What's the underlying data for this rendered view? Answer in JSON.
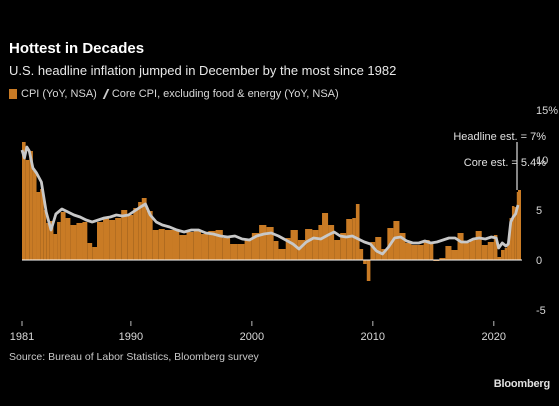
{
  "header": {
    "title": "Hottest in Decades",
    "subtitle": "U.S. headline inflation jumped in December by the most since 1982"
  },
  "legend": {
    "cpi_label": "CPI (YoY, NSA)",
    "core_label": "Core CPI, excluding food & energy (YoY, NSA)"
  },
  "annotations": {
    "headline_est": "Headline est. = 7%",
    "core_est": "Core est. = 5.4%"
  },
  "footer": {
    "source": "Source: Bureau of Labor Statistics, Bloomberg survey",
    "brand": "Bloomberg"
  },
  "colors": {
    "background": "#000000",
    "cpi_bar": "#c97b25",
    "core_line": "#c8c8c8",
    "axis": "#ffffff"
  },
  "chart_data": {
    "type": "bar",
    "x_unit": "year",
    "ylim": [
      -5,
      15
    ],
    "y_ticks": [
      -5,
      0,
      5,
      10,
      15
    ],
    "y_tick_labels": [
      "-5",
      "0",
      "5",
      "10",
      "15%"
    ],
    "x_ticks": [
      1981,
      1990,
      2000,
      2010,
      2020
    ],
    "x_tick_labels": [
      "1981",
      "1990",
      "2000",
      "2010",
      "2020"
    ],
    "xlim": [
      1981,
      2022
    ],
    "series": [
      {
        "name": "CPI (YoY, NSA)",
        "type": "bar",
        "points": [
          [
            1981.0,
            11.8
          ],
          [
            1981.3,
            10.0
          ],
          [
            1981.6,
            10.9
          ],
          [
            1981.9,
            8.9
          ],
          [
            1982.2,
            6.8
          ],
          [
            1982.5,
            7.1
          ],
          [
            1982.8,
            5.0
          ],
          [
            1983.0,
            3.7
          ],
          [
            1983.3,
            3.9
          ],
          [
            1983.6,
            2.6
          ],
          [
            1983.9,
            3.8
          ],
          [
            1984.2,
            4.8
          ],
          [
            1984.6,
            4.2
          ],
          [
            1985.0,
            3.5
          ],
          [
            1985.5,
            3.7
          ],
          [
            1986.0,
            3.8
          ],
          [
            1986.4,
            1.7
          ],
          [
            1986.8,
            1.3
          ],
          [
            1987.2,
            3.8
          ],
          [
            1987.7,
            4.2
          ],
          [
            1988.2,
            4.0
          ],
          [
            1988.7,
            4.2
          ],
          [
            1989.2,
            5.0
          ],
          [
            1989.7,
            4.5
          ],
          [
            1990.2,
            5.2
          ],
          [
            1990.6,
            5.8
          ],
          [
            1990.9,
            6.2
          ],
          [
            1991.3,
            4.9
          ],
          [
            1991.8,
            3.0
          ],
          [
            1992.3,
            3.1
          ],
          [
            1992.8,
            3.0
          ],
          [
            1993.4,
            3.0
          ],
          [
            1994.0,
            2.5
          ],
          [
            1994.6,
            2.8
          ],
          [
            1995.2,
            2.9
          ],
          [
            1995.8,
            2.6
          ],
          [
            1996.4,
            2.9
          ],
          [
            1997.0,
            3.0
          ],
          [
            1997.6,
            2.2
          ],
          [
            1998.2,
            1.6
          ],
          [
            1998.8,
            1.6
          ],
          [
            1999.4,
            2.1
          ],
          [
            2000.0,
            2.7
          ],
          [
            2000.6,
            3.5
          ],
          [
            2001.2,
            3.3
          ],
          [
            2001.8,
            1.9
          ],
          [
            2002.2,
            1.1
          ],
          [
            2002.8,
            2.2
          ],
          [
            2003.2,
            3.0
          ],
          [
            2003.8,
            2.0
          ],
          [
            2004.4,
            3.1
          ],
          [
            2005.0,
            3.0
          ],
          [
            2005.5,
            3.5
          ],
          [
            2005.8,
            4.7
          ],
          [
            2006.3,
            3.5
          ],
          [
            2006.8,
            2.0
          ],
          [
            2007.3,
            2.7
          ],
          [
            2007.8,
            4.1
          ],
          [
            2008.3,
            4.2
          ],
          [
            2008.6,
            5.6
          ],
          [
            2008.9,
            1.1
          ],
          [
            2009.2,
            -0.4
          ],
          [
            2009.5,
            -2.1
          ],
          [
            2009.8,
            1.8
          ],
          [
            2010.2,
            2.3
          ],
          [
            2010.7,
            1.1
          ],
          [
            2011.2,
            3.2
          ],
          [
            2011.7,
            3.9
          ],
          [
            2012.2,
            2.7
          ],
          [
            2012.7,
            1.7
          ],
          [
            2013.2,
            1.5
          ],
          [
            2013.7,
            1.5
          ],
          [
            2014.2,
            2.0
          ],
          [
            2014.7,
            1.7
          ],
          [
            2015.0,
            -0.1
          ],
          [
            2015.5,
            0.2
          ],
          [
            2016.0,
            1.4
          ],
          [
            2016.5,
            1.0
          ],
          [
            2017.0,
            2.7
          ],
          [
            2017.5,
            1.7
          ],
          [
            2018.0,
            2.1
          ],
          [
            2018.5,
            2.9
          ],
          [
            2019.0,
            1.5
          ],
          [
            2019.5,
            1.8
          ],
          [
            2020.0,
            2.5
          ],
          [
            2020.3,
            0.3
          ],
          [
            2020.6,
            1.0
          ],
          [
            2020.9,
            1.2
          ],
          [
            2021.1,
            1.7
          ],
          [
            2021.3,
            4.2
          ],
          [
            2021.5,
            5.4
          ],
          [
            2021.7,
            5.3
          ],
          [
            2021.9,
            6.8
          ],
          [
            2022.0,
            7.0
          ]
        ]
      },
      {
        "name": "Core CPI, excluding food & energy (YoY, NSA)",
        "type": "line",
        "points": [
          [
            1981.0,
            11.0
          ],
          [
            1981.2,
            10.2
          ],
          [
            1981.4,
            11.3
          ],
          [
            1981.6,
            10.9
          ],
          [
            1981.9,
            9.2
          ],
          [
            1982.2,
            8.7
          ],
          [
            1982.6,
            7.8
          ],
          [
            1983.0,
            4.8
          ],
          [
            1983.4,
            3.0
          ],
          [
            1983.8,
            4.6
          ],
          [
            1984.3,
            5.1
          ],
          [
            1984.8,
            4.8
          ],
          [
            1985.3,
            4.5
          ],
          [
            1985.8,
            4.3
          ],
          [
            1986.3,
            4.0
          ],
          [
            1986.8,
            3.8
          ],
          [
            1987.3,
            4.0
          ],
          [
            1987.8,
            4.2
          ],
          [
            1988.3,
            4.3
          ],
          [
            1988.8,
            4.5
          ],
          [
            1989.3,
            4.4
          ],
          [
            1989.8,
            4.5
          ],
          [
            1990.3,
            4.9
          ],
          [
            1990.8,
            5.3
          ],
          [
            1991.2,
            5.6
          ],
          [
            1991.6,
            4.5
          ],
          [
            1992.1,
            3.8
          ],
          [
            1992.6,
            3.5
          ],
          [
            1993.2,
            3.3
          ],
          [
            1993.8,
            3.0
          ],
          [
            1994.4,
            2.8
          ],
          [
            1995.0,
            3.0
          ],
          [
            1995.6,
            3.0
          ],
          [
            1996.2,
            2.7
          ],
          [
            1996.8,
            2.6
          ],
          [
            1997.4,
            2.4
          ],
          [
            1998.0,
            2.3
          ],
          [
            1998.6,
            2.4
          ],
          [
            1999.2,
            2.1
          ],
          [
            1999.8,
            2.0
          ],
          [
            2000.4,
            2.4
          ],
          [
            2001.0,
            2.6
          ],
          [
            2001.6,
            2.7
          ],
          [
            2002.2,
            2.4
          ],
          [
            2002.8,
            2.0
          ],
          [
            2003.4,
            1.6
          ],
          [
            2003.9,
            1.1
          ],
          [
            2004.5,
            1.8
          ],
          [
            2005.1,
            2.2
          ],
          [
            2005.7,
            2.1
          ],
          [
            2006.3,
            2.5
          ],
          [
            2006.8,
            2.8
          ],
          [
            2007.3,
            2.4
          ],
          [
            2007.8,
            2.3
          ],
          [
            2008.3,
            2.4
          ],
          [
            2008.8,
            2.1
          ],
          [
            2009.3,
            1.8
          ],
          [
            2009.8,
            1.6
          ],
          [
            2010.3,
            0.9
          ],
          [
            2010.8,
            0.6
          ],
          [
            2011.3,
            1.3
          ],
          [
            2011.8,
            2.2
          ],
          [
            2012.3,
            2.3
          ],
          [
            2012.8,
            1.9
          ],
          [
            2013.3,
            1.7
          ],
          [
            2013.8,
            1.7
          ],
          [
            2014.3,
            1.9
          ],
          [
            2014.8,
            1.7
          ],
          [
            2015.3,
            1.8
          ],
          [
            2015.8,
            2.0
          ],
          [
            2016.3,
            2.2
          ],
          [
            2016.8,
            2.2
          ],
          [
            2017.3,
            1.8
          ],
          [
            2017.8,
            1.8
          ],
          [
            2018.3,
            2.1
          ],
          [
            2018.8,
            2.2
          ],
          [
            2019.3,
            2.1
          ],
          [
            2019.8,
            2.3
          ],
          [
            2020.2,
            2.2
          ],
          [
            2020.4,
            1.2
          ],
          [
            2020.7,
            1.7
          ],
          [
            2021.0,
            1.4
          ],
          [
            2021.2,
            1.6
          ],
          [
            2021.4,
            3.8
          ],
          [
            2021.6,
            4.3
          ],
          [
            2021.8,
            4.6
          ],
          [
            2022.0,
            5.5
          ]
        ]
      }
    ],
    "estimates": [
      {
        "label_key": "headline_est",
        "value": 7.0
      },
      {
        "label_key": "core_est",
        "value": 5.4
      }
    ]
  }
}
